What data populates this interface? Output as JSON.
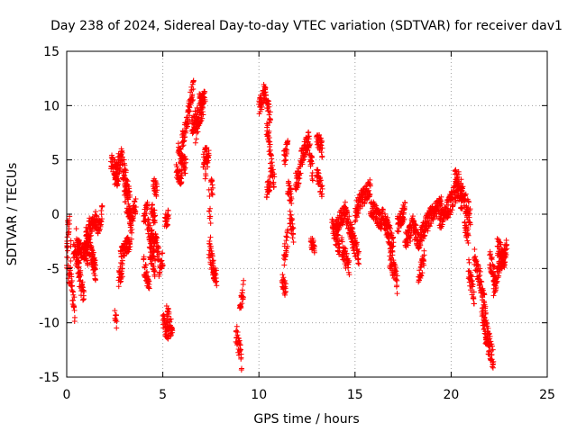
{
  "chart_data": {
    "type": "scatter",
    "title": "Day 238 of 2024, Sidereal Day-to-day VTEC variation (SDTVAR) for receiver dav1",
    "xlabel": "GPS time / hours",
    "ylabel": "SDTVAR / TECUs",
    "xlim": [
      0,
      25
    ],
    "ylim": [
      -15,
      15
    ],
    "xticks": [
      0,
      5,
      10,
      15,
      20,
      25
    ],
    "yticks": [
      -15,
      -10,
      -5,
      0,
      5,
      10,
      15
    ],
    "xtick_labels": [
      "0",
      "5",
      "10",
      "15",
      "20",
      "25"
    ],
    "ytick_labels": [
      "-15",
      "-10",
      "-5",
      "0",
      "5",
      "10",
      "15"
    ],
    "grid": true,
    "marker": "+",
    "color": "#ff0000",
    "series": [
      {
        "name": "SDTVAR",
        "segments": [
          [
            0.0,
            0.02,
            -5.0,
            -3.0,
            -4.0
          ],
          [
            0.02,
            0.22,
            -2.0,
            -3.0,
            -6.0
          ],
          [
            0.05,
            0.15,
            -0.5,
            -0.5,
            -1.5
          ],
          [
            0.22,
            0.42,
            -6.0,
            -9.0,
            -7.5
          ],
          [
            0.35,
            0.65,
            -3.0,
            -5.0,
            -4.0
          ],
          [
            0.5,
            0.62,
            -2.0,
            -2.5,
            -3.0
          ],
          [
            0.6,
            0.9,
            -5.0,
            -7.5,
            -6.5
          ],
          [
            0.6,
            1.1,
            -3.0,
            -4.0,
            -3.5
          ],
          [
            0.9,
            1.2,
            -3.0,
            -1.0,
            -2.5
          ],
          [
            1.0,
            1.5,
            -2.0,
            -5.0,
            -3.5
          ],
          [
            1.2,
            1.5,
            -1.5,
            -0.5,
            -1.0
          ],
          [
            1.3,
            1.5,
            -4.0,
            -5.5,
            -4.5
          ],
          [
            1.5,
            1.85,
            -0.5,
            0.5,
            -1.0
          ],
          [
            2.3,
            2.6,
            5.0,
            3.5,
            4.5
          ],
          [
            2.5,
            2.7,
            3.0,
            5.0,
            4.0
          ],
          [
            2.5,
            2.6,
            -9.5,
            -10.0,
            -9.8
          ],
          [
            2.6,
            2.9,
            3.0,
            5.5,
            4.5
          ],
          [
            2.7,
            2.9,
            -6.0,
            -5.0,
            -5.5
          ],
          [
            2.9,
            3.3,
            4.5,
            1.0,
            3.0
          ],
          [
            3.0,
            3.4,
            2.0,
            -1.5,
            0.5
          ],
          [
            2.8,
            3.3,
            -4.0,
            -2.5,
            -3.2
          ],
          [
            3.3,
            3.6,
            -0.5,
            1.0,
            0.0
          ],
          [
            4.0,
            4.2,
            -0.5,
            0.5,
            0.0
          ],
          [
            4.0,
            4.3,
            -4.5,
            -6.5,
            -5.5
          ],
          [
            4.2,
            4.6,
            -1.0,
            -3.0,
            -2.0
          ],
          [
            4.3,
            4.6,
            -3.0,
            -5.0,
            -4.0
          ],
          [
            4.4,
            4.6,
            0.5,
            -0.5,
            0.0
          ],
          [
            4.5,
            4.7,
            3.0,
            2.0,
            2.5
          ],
          [
            4.6,
            4.8,
            -2.0,
            -4.0,
            -3.0
          ],
          [
            4.8,
            5.0,
            -5.0,
            -4.0,
            -4.5
          ],
          [
            5.0,
            5.3,
            -10.0,
            -11.5,
            -10.5
          ],
          [
            5.2,
            5.5,
            -9.0,
            -11.0,
            -10.0
          ],
          [
            5.1,
            5.3,
            -0.5,
            0.0,
            -0.5
          ],
          [
            5.8,
            6.2,
            6.0,
            4.5,
            5.0
          ],
          [
            5.7,
            6.0,
            4.0,
            3.5,
            3.5
          ],
          [
            6.0,
            6.3,
            7.0,
            9.0,
            7.5
          ],
          [
            6.3,
            6.6,
            9.0,
            11.5,
            10.5
          ],
          [
            6.5,
            6.8,
            8.0,
            9.5,
            8.5
          ],
          [
            6.7,
            7.1,
            7.5,
            10.0,
            9.0
          ],
          [
            6.9,
            7.2,
            10.5,
            11.0,
            10.5
          ],
          [
            7.1,
            7.3,
            5.0,
            6.0,
            5.5
          ],
          [
            7.2,
            7.4,
            4.0,
            6.0,
            5.0
          ],
          [
            7.5,
            7.6,
            3.0,
            2.0,
            2.5
          ],
          [
            7.4,
            7.7,
            -3.0,
            -5.5,
            -4.5
          ],
          [
            7.6,
            7.8,
            -5.0,
            -6.0,
            -5.5
          ],
          [
            7.4,
            7.5,
            1.5,
            -2.0,
            0.0
          ],
          [
            8.8,
            9.1,
            -11.0,
            -13.5,
            -12.0
          ],
          [
            9.0,
            9.2,
            -9.0,
            -7.0,
            -8.0
          ],
          [
            10.0,
            10.3,
            10.0,
            11.5,
            10.5
          ],
          [
            10.3,
            10.6,
            11.0,
            9.0,
            10.0
          ],
          [
            10.4,
            10.6,
            8.0,
            6.0,
            7.0
          ],
          [
            10.4,
            10.6,
            2.0,
            3.0,
            2.5
          ],
          [
            10.6,
            10.8,
            5.0,
            3.0,
            4.0
          ],
          [
            11.2,
            11.4,
            -6.0,
            -7.0,
            -6.5
          ],
          [
            11.3,
            11.5,
            -4.0,
            -2.0,
            -3.0
          ],
          [
            11.3,
            11.5,
            5.0,
            6.5,
            5.5
          ],
          [
            11.5,
            11.7,
            2.5,
            1.5,
            2.0
          ],
          [
            11.6,
            11.8,
            0.0,
            -2.0,
            -1.0
          ],
          [
            11.9,
            12.2,
            3.0,
            4.5,
            3.5
          ],
          [
            12.2,
            12.6,
            5.0,
            7.0,
            6.0
          ],
          [
            12.6,
            12.8,
            6.5,
            4.0,
            5.0
          ],
          [
            12.7,
            12.9,
            -2.5,
            -3.0,
            -2.8
          ],
          [
            13.0,
            13.3,
            7.5,
            6.0,
            6.5
          ],
          [
            13.0,
            13.3,
            3.5,
            2.0,
            3.0
          ],
          [
            13.8,
            14.2,
            -1.0,
            -3.0,
            -2.0
          ],
          [
            14.0,
            14.5,
            -1.0,
            0.5,
            -0.5
          ],
          [
            14.3,
            14.7,
            -3.0,
            -5.0,
            -4.0
          ],
          [
            14.5,
            14.9,
            0.5,
            -2.0,
            -1.0
          ],
          [
            14.8,
            15.2,
            -2.0,
            -4.0,
            -3.0
          ],
          [
            15.0,
            15.4,
            0.0,
            1.5,
            1.0
          ],
          [
            15.4,
            15.8,
            1.5,
            2.5,
            2.0
          ],
          [
            15.8,
            16.4,
            0.5,
            -1.0,
            0.0
          ],
          [
            16.4,
            16.8,
            0.0,
            -1.5,
            -0.8
          ],
          [
            16.8,
            17.2,
            -4.0,
            -6.5,
            -5.0
          ],
          [
            16.6,
            17.0,
            -1.0,
            -3.0,
            -2.0
          ],
          [
            17.2,
            17.6,
            -1.0,
            0.5,
            -0.5
          ],
          [
            17.6,
            18.0,
            -2.5,
            -1.0,
            -2.0
          ],
          [
            18.0,
            18.4,
            -1.0,
            -3.0,
            -2.0
          ],
          [
            18.3,
            18.6,
            -5.5,
            -4.0,
            -5.0
          ],
          [
            18.4,
            19.0,
            -2.0,
            0.0,
            -1.0
          ],
          [
            19.0,
            19.5,
            0.0,
            1.0,
            0.5
          ],
          [
            19.4,
            19.8,
            -1.0,
            0.5,
            0.0
          ],
          [
            19.8,
            20.4,
            0.5,
            3.0,
            1.5
          ],
          [
            20.2,
            20.6,
            3.5,
            1.0,
            2.0
          ],
          [
            20.5,
            21.0,
            2.5,
            0.0,
            1.0
          ],
          [
            20.7,
            20.9,
            -1.0,
            -2.0,
            -1.5
          ],
          [
            20.9,
            21.2,
            -5.0,
            -8.0,
            -6.5
          ],
          [
            21.2,
            21.5,
            -4.0,
            -6.0,
            -5.0
          ],
          [
            21.5,
            21.8,
            -6.0,
            -9.0,
            -7.5
          ],
          [
            21.6,
            22.0,
            -9.5,
            -12.5,
            -11.0
          ],
          [
            21.8,
            22.2,
            -10.5,
            -13.5,
            -12.0
          ],
          [
            22.0,
            22.3,
            -4.0,
            -6.0,
            -5.0
          ],
          [
            22.2,
            22.5,
            -7.0,
            -5.0,
            -6.0
          ],
          [
            22.4,
            22.8,
            -3.0,
            -4.5,
            -3.5
          ],
          [
            22.5,
            22.9,
            -4.5,
            -3.0,
            -4.0
          ]
        ]
      }
    ]
  }
}
